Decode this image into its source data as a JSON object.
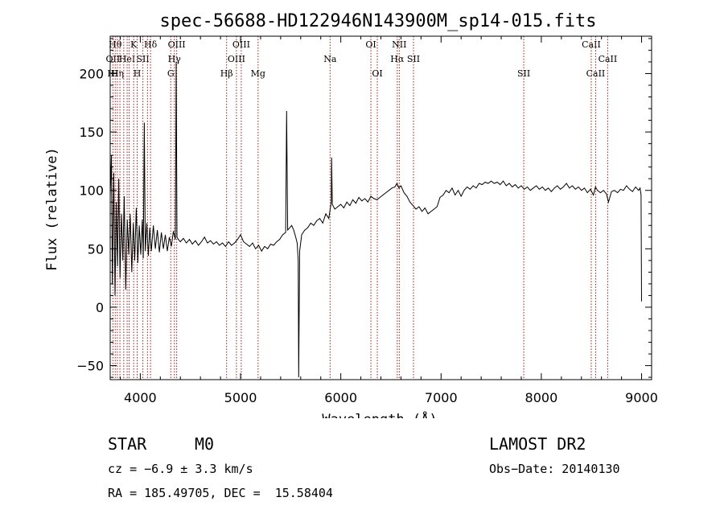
{
  "chart_data": {
    "type": "line",
    "title": "spec-56688-HD122946N143900M_sp14-015.fits",
    "xlabel": "Wavelength (Å)",
    "ylabel": "Flux (relative)",
    "xlim": [
      3700,
      9100
    ],
    "ylim": [
      -62,
      232
    ],
    "x_ticks": [
      4000,
      5000,
      6000,
      7000,
      8000,
      9000
    ],
    "y_ticks": [
      -50,
      0,
      50,
      100,
      150,
      200
    ],
    "grid": false,
    "line_color": "#000000",
    "marker_color": "#a01a1a",
    "series": [
      {
        "points": [
          [
            3700,
            95
          ],
          [
            3712,
            130
          ],
          [
            3722,
            20
          ],
          [
            3735,
            115
          ],
          [
            3748,
            10
          ],
          [
            3760,
            90
          ],
          [
            3772,
            35
          ],
          [
            3785,
            110
          ],
          [
            3798,
            25
          ],
          [
            3812,
            80
          ],
          [
            3826,
            40
          ],
          [
            3840,
            95
          ],
          [
            3855,
            15
          ],
          [
            3870,
            75
          ],
          [
            3885,
            45
          ],
          [
            3900,
            80
          ],
          [
            3915,
            30
          ],
          [
            3930,
            72
          ],
          [
            3945,
            40
          ],
          [
            3960,
            85
          ],
          [
            3975,
            38
          ],
          [
            3990,
            70
          ],
          [
            4005,
            45
          ],
          [
            4020,
            75
          ],
          [
            4030,
            42
          ],
          [
            4040,
            158
          ],
          [
            4050,
            48
          ],
          [
            4065,
            72
          ],
          [
            4080,
            44
          ],
          [
            4095,
            68
          ],
          [
            4110,
            48
          ],
          [
            4130,
            70
          ],
          [
            4150,
            50
          ],
          [
            4170,
            66
          ],
          [
            4190,
            47
          ],
          [
            4210,
            64
          ],
          [
            4230,
            50
          ],
          [
            4250,
            62
          ],
          [
            4270,
            48
          ],
          [
            4290,
            60
          ],
          [
            4310,
            52
          ],
          [
            4330,
            65
          ],
          [
            4350,
            58
          ],
          [
            4358,
            210
          ],
          [
            4366,
            60
          ],
          [
            4380,
            58
          ],
          [
            4400,
            56
          ],
          [
            4430,
            59
          ],
          [
            4460,
            55
          ],
          [
            4490,
            58
          ],
          [
            4520,
            54
          ],
          [
            4550,
            57
          ],
          [
            4580,
            53
          ],
          [
            4610,
            56
          ],
          [
            4640,
            60
          ],
          [
            4670,
            55
          ],
          [
            4700,
            57
          ],
          [
            4730,
            54
          ],
          [
            4760,
            56
          ],
          [
            4790,
            53
          ],
          [
            4820,
            55
          ],
          [
            4850,
            52
          ],
          [
            4880,
            56
          ],
          [
            4910,
            53
          ],
          [
            4940,
            55
          ],
          [
            4970,
            58
          ],
          [
            5000,
            62
          ],
          [
            5030,
            56
          ],
          [
            5060,
            54
          ],
          [
            5090,
            52
          ],
          [
            5120,
            55
          ],
          [
            5150,
            50
          ],
          [
            5180,
            53
          ],
          [
            5210,
            48
          ],
          [
            5240,
            52
          ],
          [
            5270,
            50
          ],
          [
            5300,
            54
          ],
          [
            5330,
            53
          ],
          [
            5360,
            56
          ],
          [
            5390,
            58
          ],
          [
            5420,
            62
          ],
          [
            5450,
            64
          ],
          [
            5460,
            168
          ],
          [
            5470,
            66
          ],
          [
            5490,
            68
          ],
          [
            5510,
            70
          ],
          [
            5530,
            66
          ],
          [
            5550,
            60
          ],
          [
            5565,
            55
          ],
          [
            5575,
            40
          ],
          [
            5580,
            -60
          ],
          [
            5590,
            48
          ],
          [
            5610,
            62
          ],
          [
            5640,
            66
          ],
          [
            5670,
            68
          ],
          [
            5700,
            72
          ],
          [
            5730,
            70
          ],
          [
            5760,
            74
          ],
          [
            5790,
            76
          ],
          [
            5820,
            72
          ],
          [
            5850,
            80
          ],
          [
            5880,
            76
          ],
          [
            5905,
            90
          ],
          [
            5908,
            128
          ],
          [
            5915,
            88
          ],
          [
            5940,
            84
          ],
          [
            5970,
            86
          ],
          [
            6000,
            88
          ],
          [
            6030,
            85
          ],
          [
            6060,
            90
          ],
          [
            6090,
            87
          ],
          [
            6120,
            92
          ],
          [
            6150,
            89
          ],
          [
            6180,
            94
          ],
          [
            6210,
            91
          ],
          [
            6240,
            93
          ],
          [
            6270,
            90
          ],
          [
            6300,
            95
          ],
          [
            6330,
            93
          ],
          [
            6360,
            92
          ],
          [
            6390,
            94
          ],
          [
            6420,
            96
          ],
          [
            6450,
            98
          ],
          [
            6480,
            100
          ],
          [
            6510,
            102
          ],
          [
            6540,
            103
          ],
          [
            6560,
            106
          ],
          [
            6580,
            102
          ],
          [
            6600,
            104
          ],
          [
            6630,
            98
          ],
          [
            6660,
            95
          ],
          [
            6690,
            90
          ],
          [
            6720,
            87
          ],
          [
            6750,
            84
          ],
          [
            6780,
            86
          ],
          [
            6810,
            82
          ],
          [
            6840,
            85
          ],
          [
            6870,
            80
          ],
          [
            6900,
            82
          ],
          [
            6930,
            84
          ],
          [
            6960,
            86
          ],
          [
            6990,
            94
          ],
          [
            7020,
            96
          ],
          [
            7050,
            100
          ],
          [
            7080,
            98
          ],
          [
            7110,
            102
          ],
          [
            7140,
            96
          ],
          [
            7170,
            100
          ],
          [
            7200,
            95
          ],
          [
            7230,
            100
          ],
          [
            7260,
            103
          ],
          [
            7290,
            101
          ],
          [
            7320,
            104
          ],
          [
            7350,
            102
          ],
          [
            7380,
            106
          ],
          [
            7410,
            105
          ],
          [
            7440,
            107
          ],
          [
            7470,
            106
          ],
          [
            7500,
            108
          ],
          [
            7530,
            106
          ],
          [
            7560,
            107
          ],
          [
            7590,
            105
          ],
          [
            7620,
            108
          ],
          [
            7650,
            104
          ],
          [
            7680,
            106
          ],
          [
            7710,
            103
          ],
          [
            7740,
            105
          ],
          [
            7770,
            102
          ],
          [
            7800,
            104
          ],
          [
            7830,
            101
          ],
          [
            7860,
            103
          ],
          [
            7890,
            100
          ],
          [
            7920,
            102
          ],
          [
            7950,
            104
          ],
          [
            7980,
            101
          ],
          [
            8010,
            103
          ],
          [
            8040,
            100
          ],
          [
            8070,
            102
          ],
          [
            8100,
            99
          ],
          [
            8130,
            102
          ],
          [
            8160,
            104
          ],
          [
            8190,
            101
          ],
          [
            8220,
            103
          ],
          [
            8250,
            106
          ],
          [
            8280,
            102
          ],
          [
            8310,
            104
          ],
          [
            8340,
            101
          ],
          [
            8370,
            103
          ],
          [
            8400,
            100
          ],
          [
            8430,
            102
          ],
          [
            8460,
            98
          ],
          [
            8490,
            101
          ],
          [
            8520,
            96
          ],
          [
            8540,
            103
          ],
          [
            8560,
            100
          ],
          [
            8590,
            98
          ],
          [
            8620,
            100
          ],
          [
            8650,
            97
          ],
          [
            8670,
            90
          ],
          [
            8700,
            99
          ],
          [
            8730,
            100
          ],
          [
            8760,
            98
          ],
          [
            8790,
            101
          ],
          [
            8820,
            100
          ],
          [
            8850,
            104
          ],
          [
            8880,
            101
          ],
          [
            8910,
            99
          ],
          [
            8940,
            103
          ],
          [
            8970,
            100
          ],
          [
            8985,
            102
          ],
          [
            8995,
            96
          ],
          [
            9000,
            5
          ]
        ]
      }
    ],
    "lines": [
      {
        "x": 3727,
        "labels": [
          {
            "text": "OII",
            "row": 2
          },
          {
            "text": "HI",
            "row": 3
          }
        ]
      },
      {
        "x": 3750,
        "labels": [
          {
            "text": "Hθ",
            "row": 1
          }
        ]
      },
      {
        "x": 3771,
        "labels": [
          {
            "text": "Hη",
            "row": 3
          }
        ]
      },
      {
        "x": 3797,
        "labels": []
      },
      {
        "x": 3835,
        "labels": []
      },
      {
        "x": 3869,
        "labels": [
          {
            "text": "HeI",
            "row": 2
          }
        ]
      },
      {
        "x": 3889,
        "labels": []
      },
      {
        "x": 3934,
        "labels": [
          {
            "text": "K",
            "row": 1
          }
        ]
      },
      {
        "x": 3969,
        "labels": [
          {
            "text": "H",
            "row": 3
          }
        ]
      },
      {
        "x": 4026,
        "labels": [
          {
            "text": "SII",
            "row": 2
          }
        ]
      },
      {
        "x": 4072,
        "labels": []
      },
      {
        "x": 4102,
        "labels": [
          {
            "text": "Hδ",
            "row": 1
          }
        ]
      },
      {
        "x": 4304,
        "labels": [
          {
            "text": "G",
            "row": 3
          }
        ]
      },
      {
        "x": 4340,
        "labels": [
          {
            "text": "Hγ",
            "row": 2
          }
        ]
      },
      {
        "x": 4363,
        "labels": [
          {
            "text": "OIII",
            "row": 1
          }
        ]
      },
      {
        "x": 4861,
        "labels": [
          {
            "text": "Hβ",
            "row": 3
          }
        ]
      },
      {
        "x": 4959,
        "labels": [
          {
            "text": "OIII",
            "row": 2
          }
        ]
      },
      {
        "x": 5007,
        "labels": [
          {
            "text": "OIII",
            "row": 1
          }
        ]
      },
      {
        "x": 5175,
        "labels": [
          {
            "text": "Mg",
            "row": 3
          }
        ]
      },
      {
        "x": 5893,
        "labels": [
          {
            "text": "Na",
            "row": 2
          }
        ]
      },
      {
        "x": 6300,
        "labels": [
          {
            "text": "OI",
            "row": 1
          }
        ]
      },
      {
        "x": 6364,
        "labels": [
          {
            "text": "OI",
            "row": 3
          }
        ]
      },
      {
        "x": 6563,
        "labels": [
          {
            "text": "Hα",
            "row": 2
          }
        ]
      },
      {
        "x": 6583,
        "labels": [
          {
            "text": "NII",
            "row": 1
          }
        ]
      },
      {
        "x": 6725,
        "labels": [
          {
            "text": "SII",
            "row": 2
          }
        ]
      },
      {
        "x": 7825,
        "labels": [
          {
            "text": "SII",
            "row": 3
          }
        ]
      },
      {
        "x": 8498,
        "labels": [
          {
            "text": "CaII",
            "row": 1
          }
        ]
      },
      {
        "x": 8542,
        "labels": [
          {
            "text": "CaII",
            "row": 3
          }
        ]
      },
      {
        "x": 8662,
        "labels": [
          {
            "text": "CaII",
            "row": 2
          }
        ]
      }
    ]
  },
  "info": {
    "object_class": "STAR",
    "subclass": "M0",
    "survey": "LAMOST DR2",
    "cz": "cz = −6.9 ± 3.3 km/s",
    "obs_date": "Obs−Date: 20140130",
    "coords": "RA = 185.49705, DEC =  15.58404"
  }
}
